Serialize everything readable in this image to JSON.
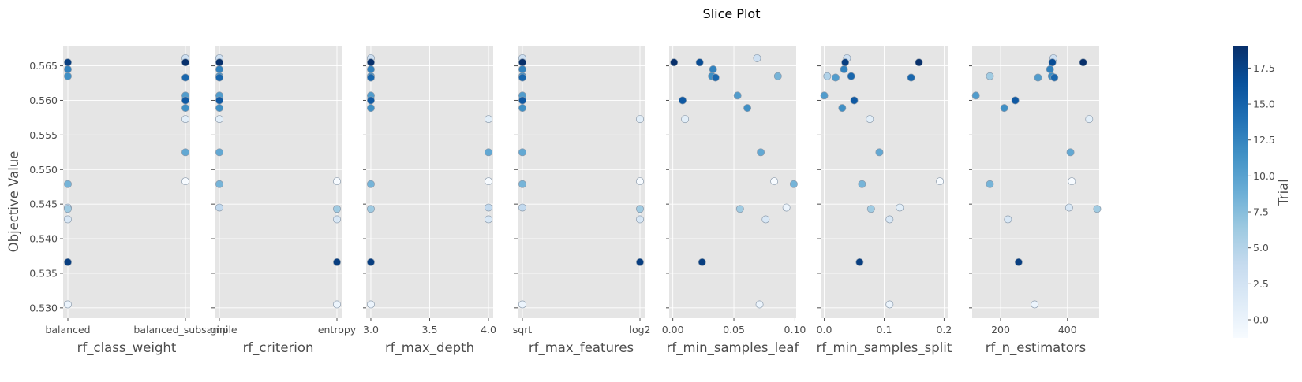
{
  "chart_data": {
    "type": "scatter",
    "title": "Slice Plot",
    "ylabel": "Objective Value",
    "ylim": [
      0.5285,
      0.5678
    ],
    "yticks": [
      "0.530",
      "0.535",
      "0.540",
      "0.545",
      "0.550",
      "0.555",
      "0.560",
      "0.565"
    ],
    "colorbar": {
      "label": "Trial",
      "range": [
        0,
        19
      ],
      "ticks": [
        "0.0",
        "2.5",
        "5.0",
        "7.5",
        "10.0",
        "12.5",
        "15.0",
        "17.5"
      ],
      "colors": [
        "#f7fbff",
        "#deebf7",
        "#c6dbef",
        "#9ecae1",
        "#6baed6",
        "#4292c6",
        "#2171b5",
        "#08519c",
        "#08306b"
      ]
    },
    "panels": [
      {
        "xlabel": "rf_class_weight",
        "xscale": "categorical",
        "categories": [
          "balanced",
          "balanced_subsample"
        ],
        "xticks": [
          "balanced",
          "balanced_subsample"
        ],
        "points": [
          {
            "x": "balanced",
            "y": 0.5655,
            "trial": 18
          },
          {
            "x": "balanced",
            "y": 0.5645,
            "trial": 13
          },
          {
            "x": "balanced",
            "y": 0.5635,
            "trial": 12
          },
          {
            "x": "balanced",
            "y": 0.5479,
            "trial": 9
          },
          {
            "x": "balanced",
            "y": 0.5445,
            "trial": 5
          },
          {
            "x": "balanced",
            "y": 0.5443,
            "trial": 7
          },
          {
            "x": "balanced",
            "y": 0.5428,
            "trial": 3
          },
          {
            "x": "balanced",
            "y": 0.5366,
            "trial": 18
          },
          {
            "x": "balanced",
            "y": 0.5305,
            "trial": 1
          },
          {
            "x": "balanced_subsample",
            "y": 0.5661,
            "trial": 4
          },
          {
            "x": "balanced_subsample",
            "y": 0.5655,
            "trial": 19
          },
          {
            "x": "balanced_subsample",
            "y": 0.5633,
            "trial": 15
          },
          {
            "x": "balanced_subsample",
            "y": 0.5607,
            "trial": 11
          },
          {
            "x": "balanced_subsample",
            "y": 0.56,
            "trial": 16
          },
          {
            "x": "balanced_subsample",
            "y": 0.5589,
            "trial": 12
          },
          {
            "x": "balanced_subsample",
            "y": 0.5573,
            "trial": 2
          },
          {
            "x": "balanced_subsample",
            "y": 0.5525,
            "trial": 10
          },
          {
            "x": "balanced_subsample",
            "y": 0.5483,
            "trial": 0
          }
        ]
      },
      {
        "xlabel": "rf_criterion",
        "xscale": "categorical",
        "categories": [
          "gini",
          "entropy"
        ],
        "xticks": [
          "gini",
          "entropy"
        ],
        "points": [
          {
            "x": "gini",
            "y": 0.5661,
            "trial": 4
          },
          {
            "x": "gini",
            "y": 0.5655,
            "trial": 18
          },
          {
            "x": "gini",
            "y": 0.5655,
            "trial": 19
          },
          {
            "x": "gini",
            "y": 0.5645,
            "trial": 13
          },
          {
            "x": "gini",
            "y": 0.5635,
            "trial": 12
          },
          {
            "x": "gini",
            "y": 0.5633,
            "trial": 15
          },
          {
            "x": "gini",
            "y": 0.5607,
            "trial": 11
          },
          {
            "x": "gini",
            "y": 0.56,
            "trial": 16
          },
          {
            "x": "gini",
            "y": 0.5589,
            "trial": 12
          },
          {
            "x": "gini",
            "y": 0.5573,
            "trial": 2
          },
          {
            "x": "gini",
            "y": 0.5525,
            "trial": 10
          },
          {
            "x": "gini",
            "y": 0.5479,
            "trial": 9
          },
          {
            "x": "gini",
            "y": 0.5445,
            "trial": 5
          },
          {
            "x": "entropy",
            "y": 0.5483,
            "trial": 0
          },
          {
            "x": "entropy",
            "y": 0.5443,
            "trial": 7
          },
          {
            "x": "entropy",
            "y": 0.5428,
            "trial": 3
          },
          {
            "x": "entropy",
            "y": 0.5366,
            "trial": 18
          },
          {
            "x": "entropy",
            "y": 0.5305,
            "trial": 1
          }
        ]
      },
      {
        "xlabel": "rf_max_depth",
        "xscale": "linear",
        "xlim": [
          2.96,
          4.04
        ],
        "xtick_values": [
          3.0,
          3.5,
          4.0
        ],
        "xticks": [
          "3.0",
          "3.5",
          "4.0"
        ],
        "points": [
          {
            "x": 3.0,
            "y": 0.5661,
            "trial": 4
          },
          {
            "x": 3.0,
            "y": 0.5655,
            "trial": 18
          },
          {
            "x": 3.0,
            "y": 0.5655,
            "trial": 19
          },
          {
            "x": 3.0,
            "y": 0.5645,
            "trial": 13
          },
          {
            "x": 3.0,
            "y": 0.5635,
            "trial": 12
          },
          {
            "x": 3.0,
            "y": 0.5633,
            "trial": 15
          },
          {
            "x": 3.0,
            "y": 0.5607,
            "trial": 11
          },
          {
            "x": 3.0,
            "y": 0.56,
            "trial": 16
          },
          {
            "x": 3.0,
            "y": 0.5589,
            "trial": 12
          },
          {
            "x": 3.0,
            "y": 0.5479,
            "trial": 9
          },
          {
            "x": 3.0,
            "y": 0.5443,
            "trial": 7
          },
          {
            "x": 3.0,
            "y": 0.5366,
            "trial": 18
          },
          {
            "x": 3.0,
            "y": 0.5305,
            "trial": 1
          },
          {
            "x": 4.0,
            "y": 0.5573,
            "trial": 2
          },
          {
            "x": 4.0,
            "y": 0.5525,
            "trial": 10
          },
          {
            "x": 4.0,
            "y": 0.5483,
            "trial": 0
          },
          {
            "x": 4.0,
            "y": 0.5445,
            "trial": 5
          },
          {
            "x": 4.0,
            "y": 0.5428,
            "trial": 3
          }
        ]
      },
      {
        "xlabel": "rf_max_features",
        "xscale": "categorical",
        "categories": [
          "sqrt",
          "log2"
        ],
        "xticks": [
          "sqrt",
          "log2"
        ],
        "points": [
          {
            "x": "sqrt",
            "y": 0.5661,
            "trial": 4
          },
          {
            "x": "sqrt",
            "y": 0.5655,
            "trial": 18
          },
          {
            "x": "sqrt",
            "y": 0.5655,
            "trial": 19
          },
          {
            "x": "sqrt",
            "y": 0.5645,
            "trial": 13
          },
          {
            "x": "sqrt",
            "y": 0.5635,
            "trial": 12
          },
          {
            "x": "sqrt",
            "y": 0.5633,
            "trial": 15
          },
          {
            "x": "sqrt",
            "y": 0.5607,
            "trial": 11
          },
          {
            "x": "sqrt",
            "y": 0.56,
            "trial": 16
          },
          {
            "x": "sqrt",
            "y": 0.5589,
            "trial": 12
          },
          {
            "x": "sqrt",
            "y": 0.5525,
            "trial": 10
          },
          {
            "x": "sqrt",
            "y": 0.5479,
            "trial": 9
          },
          {
            "x": "sqrt",
            "y": 0.5445,
            "trial": 5
          },
          {
            "x": "sqrt",
            "y": 0.5305,
            "trial": 1
          },
          {
            "x": "log2",
            "y": 0.5573,
            "trial": 2
          },
          {
            "x": "log2",
            "y": 0.5483,
            "trial": 0
          },
          {
            "x": "log2",
            "y": 0.5443,
            "trial": 7
          },
          {
            "x": "log2",
            "y": 0.5428,
            "trial": 3
          },
          {
            "x": "log2",
            "y": 0.5366,
            "trial": 18
          }
        ]
      },
      {
        "xlabel": "rf_min_samples_leaf",
        "xscale": "linear",
        "xlim": [
          -0.003,
          0.101
        ],
        "xtick_values": [
          0.0,
          0.05,
          0.1
        ],
        "xticks": [
          "0.00",
          "0.05",
          "0.10"
        ],
        "points": [
          {
            "x": 0.001,
            "y": 0.5655,
            "trial": 19
          },
          {
            "x": 0.022,
            "y": 0.5655,
            "trial": 17
          },
          {
            "x": 0.069,
            "y": 0.5661,
            "trial": 4
          },
          {
            "x": 0.033,
            "y": 0.5645,
            "trial": 13
          },
          {
            "x": 0.032,
            "y": 0.5635,
            "trial": 12
          },
          {
            "x": 0.035,
            "y": 0.5633,
            "trial": 15
          },
          {
            "x": 0.086,
            "y": 0.5635,
            "trial": 9
          },
          {
            "x": 0.008,
            "y": 0.56,
            "trial": 16
          },
          {
            "x": 0.053,
            "y": 0.5607,
            "trial": 11
          },
          {
            "x": 0.061,
            "y": 0.5589,
            "trial": 12
          },
          {
            "x": 0.01,
            "y": 0.5573,
            "trial": 2
          },
          {
            "x": 0.072,
            "y": 0.5525,
            "trial": 10
          },
          {
            "x": 0.083,
            "y": 0.5483,
            "trial": 0
          },
          {
            "x": 0.099,
            "y": 0.5479,
            "trial": 9
          },
          {
            "x": 0.055,
            "y": 0.5443,
            "trial": 7
          },
          {
            "x": 0.093,
            "y": 0.5445,
            "trial": 1
          },
          {
            "x": 0.076,
            "y": 0.5428,
            "trial": 3
          },
          {
            "x": 0.024,
            "y": 0.5366,
            "trial": 18
          },
          {
            "x": 0.071,
            "y": 0.5305,
            "trial": 1
          }
        ]
      },
      {
        "xlabel": "rf_min_samples_split",
        "xscale": "linear",
        "xlim": [
          -0.006,
          0.206
        ],
        "xtick_values": [
          0.0,
          0.1,
          0.2
        ],
        "xticks": [
          "0.0",
          "0.1",
          "0.2"
        ],
        "points": [
          {
            "x": 0.035,
            "y": 0.5655,
            "trial": 18
          },
          {
            "x": 0.038,
            "y": 0.5661,
            "trial": 4
          },
          {
            "x": 0.158,
            "y": 0.5655,
            "trial": 19
          },
          {
            "x": 0.033,
            "y": 0.5645,
            "trial": 13
          },
          {
            "x": 0.045,
            "y": 0.5635,
            "trial": 15
          },
          {
            "x": 0.005,
            "y": 0.5635,
            "trial": 6
          },
          {
            "x": 0.019,
            "y": 0.5633,
            "trial": 11
          },
          {
            "x": 0.145,
            "y": 0.5633,
            "trial": 15
          },
          {
            "x": 0.0,
            "y": 0.5607,
            "trial": 11
          },
          {
            "x": 0.05,
            "y": 0.56,
            "trial": 16
          },
          {
            "x": 0.03,
            "y": 0.5589,
            "trial": 12
          },
          {
            "x": 0.076,
            "y": 0.5573,
            "trial": 2
          },
          {
            "x": 0.092,
            "y": 0.5525,
            "trial": 10
          },
          {
            "x": 0.063,
            "y": 0.5479,
            "trial": 9
          },
          {
            "x": 0.193,
            "y": 0.5483,
            "trial": 0
          },
          {
            "x": 0.078,
            "y": 0.5443,
            "trial": 7
          },
          {
            "x": 0.126,
            "y": 0.5445,
            "trial": 2
          },
          {
            "x": 0.109,
            "y": 0.5428,
            "trial": 3
          },
          {
            "x": 0.059,
            "y": 0.5366,
            "trial": 18
          },
          {
            "x": 0.109,
            "y": 0.5305,
            "trial": 1
          }
        ]
      },
      {
        "xlabel": "rf_n_estimators",
        "xscale": "linear",
        "xlim": [
          115,
          495
        ],
        "xtick_values": [
          200,
          400
        ],
        "xticks": [
          "200",
          "400"
        ],
        "points": [
          {
            "x": 358,
            "y": 0.5661,
            "trial": 4
          },
          {
            "x": 355,
            "y": 0.5655,
            "trial": 17
          },
          {
            "x": 447,
            "y": 0.5655,
            "trial": 19
          },
          {
            "x": 348,
            "y": 0.5645,
            "trial": 13
          },
          {
            "x": 168,
            "y": 0.5635,
            "trial": 7
          },
          {
            "x": 312,
            "y": 0.5633,
            "trial": 11
          },
          {
            "x": 353,
            "y": 0.5635,
            "trial": 12
          },
          {
            "x": 361,
            "y": 0.5633,
            "trial": 15
          },
          {
            "x": 126,
            "y": 0.5607,
            "trial": 11
          },
          {
            "x": 244,
            "y": 0.56,
            "trial": 16
          },
          {
            "x": 211,
            "y": 0.5589,
            "trial": 12
          },
          {
            "x": 465,
            "y": 0.5573,
            "trial": 2
          },
          {
            "x": 409,
            "y": 0.5525,
            "trial": 10
          },
          {
            "x": 168,
            "y": 0.5479,
            "trial": 9
          },
          {
            "x": 413,
            "y": 0.5483,
            "trial": 0
          },
          {
            "x": 405,
            "y": 0.5445,
            "trial": 3
          },
          {
            "x": 489,
            "y": 0.5443,
            "trial": 7
          },
          {
            "x": 222,
            "y": 0.5428,
            "trial": 3
          },
          {
            "x": 254,
            "y": 0.5366,
            "trial": 18
          },
          {
            "x": 302,
            "y": 0.5305,
            "trial": 1
          }
        ]
      }
    ]
  }
}
